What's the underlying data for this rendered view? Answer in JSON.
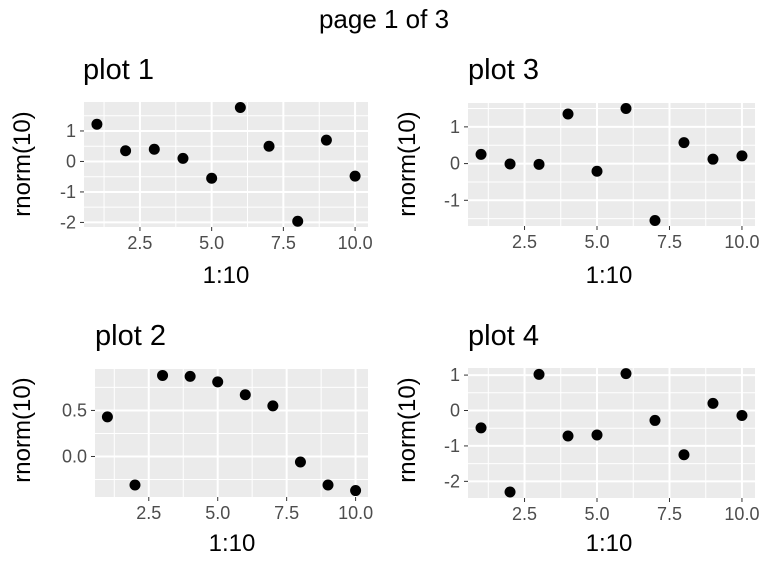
{
  "page": {
    "title": "page 1 of 3"
  },
  "chart_data": [
    {
      "type": "scatter",
      "title": "plot 1",
      "xlabel": "1:10",
      "ylabel": "rnorm(10)",
      "x": [
        1,
        2,
        3,
        4,
        5,
        6,
        7,
        8,
        9,
        10
      ],
      "y": [
        1.22,
        0.35,
        0.4,
        0.1,
        -0.55,
        1.77,
        0.5,
        -1.96,
        0.7,
        -0.48
      ],
      "xlim": [
        0.55,
        10.45
      ],
      "ylim": [
        -2.15,
        1.95
      ],
      "xticks": [
        2.5,
        5.0,
        7.5,
        10.0
      ],
      "xticklabels": [
        "2.5",
        "5.0",
        "7.5",
        "10.0"
      ],
      "yticks": [
        -2,
        -1,
        0,
        1
      ],
      "yticklabels": [
        "-2",
        "-1",
        "0",
        "1"
      ],
      "grid": true,
      "colors": {
        "point": "#000000",
        "panel_bg": "#ebebeb",
        "grid": "#ffffff",
        "tick_text": "#4d4d4d"
      }
    },
    {
      "type": "scatter",
      "title": "plot 2",
      "xlabel": "1:10",
      "ylabel": "rnorm(10)",
      "x": [
        1,
        2,
        3,
        4,
        5,
        6,
        7,
        8,
        9,
        10
      ],
      "y": [
        0.43,
        -0.31,
        0.88,
        0.87,
        0.81,
        0.67,
        0.55,
        -0.06,
        -0.31,
        -0.37
      ],
      "xlim": [
        0.55,
        10.45
      ],
      "ylim": [
        -0.44,
        0.95
      ],
      "xticks": [
        2.5,
        5.0,
        7.5,
        10.0
      ],
      "xticklabels": [
        "2.5",
        "5.0",
        "7.5",
        "10.0"
      ],
      "yticks": [
        0.0,
        0.5
      ],
      "yticklabels": [
        "0.0",
        "0.5"
      ],
      "grid": true,
      "colors": {
        "point": "#000000",
        "panel_bg": "#ebebeb",
        "grid": "#ffffff",
        "tick_text": "#4d4d4d"
      }
    },
    {
      "type": "scatter",
      "title": "plot 3",
      "xlabel": "1:10",
      "ylabel": "rnorm(10)",
      "x": [
        1,
        2,
        3,
        4,
        5,
        6,
        7,
        8,
        9,
        10
      ],
      "y": [
        0.25,
        -0.01,
        -0.02,
        1.35,
        -0.21,
        1.5,
        -1.55,
        0.57,
        0.12,
        0.21
      ],
      "xlim": [
        0.55,
        10.45
      ],
      "ylim": [
        -1.7,
        1.65
      ],
      "xticks": [
        2.5,
        5.0,
        7.5,
        10.0
      ],
      "xticklabels": [
        "2.5",
        "5.0",
        "7.5",
        "10.0"
      ],
      "yticks": [
        -1,
        0,
        1
      ],
      "yticklabels": [
        "-1",
        "0",
        "1"
      ],
      "grid": true,
      "colors": {
        "point": "#000000",
        "panel_bg": "#ebebeb",
        "grid": "#ffffff",
        "tick_text": "#4d4d4d"
      }
    },
    {
      "type": "scatter",
      "title": "plot 4",
      "xlabel": "1:10",
      "ylabel": "rnorm(10)",
      "x": [
        1,
        2,
        3,
        4,
        5,
        6,
        7,
        8,
        9,
        10
      ],
      "y": [
        -0.49,
        -2.3,
        1.02,
        -0.72,
        -0.69,
        1.04,
        -0.28,
        -1.25,
        0.2,
        -0.14
      ],
      "xlim": [
        0.55,
        10.45
      ],
      "ylim": [
        -2.47,
        1.2
      ],
      "xticks": [
        2.5,
        5.0,
        7.5,
        10.0
      ],
      "xticklabels": [
        "2.5",
        "5.0",
        "7.5",
        "10.0"
      ],
      "yticks": [
        -2,
        -1,
        0,
        1
      ],
      "yticklabels": [
        "-2",
        "-1",
        "0",
        "1"
      ],
      "grid": true,
      "colors": {
        "point": "#000000",
        "panel_bg": "#ebebeb",
        "grid": "#ffffff",
        "tick_text": "#4d4d4d"
      }
    }
  ]
}
